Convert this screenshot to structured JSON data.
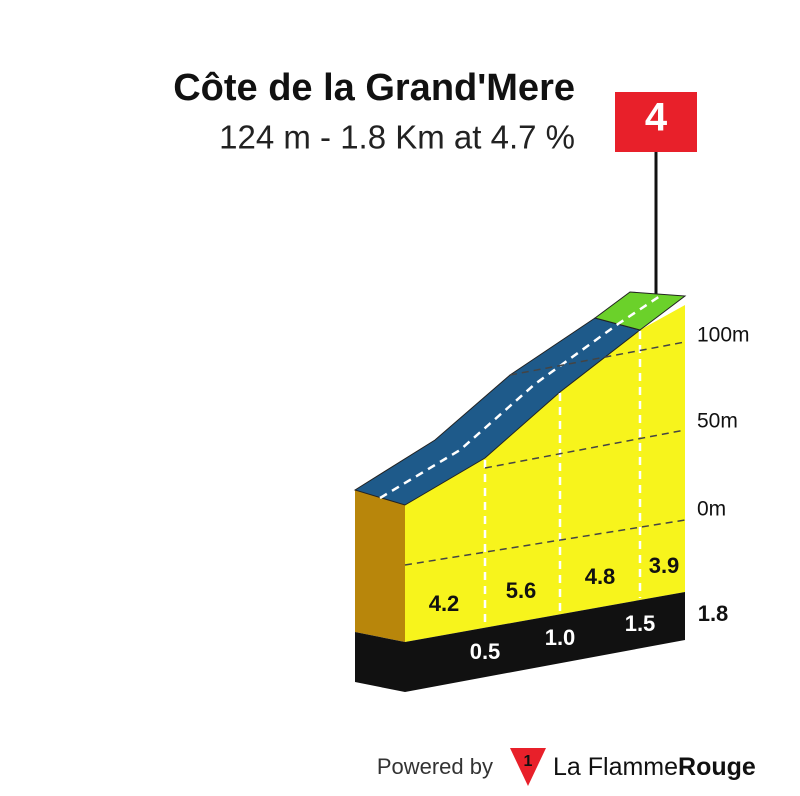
{
  "header": {
    "title": "Côte de la Grand'Mere",
    "subtitle": "124 m - 1.8 Km at 4.7 %"
  },
  "profile": {
    "category": "4",
    "elevation_labels": [
      "100m",
      "50m",
      "0m"
    ],
    "gradients": [
      "4.2",
      "5.6",
      "4.8",
      "3.9"
    ],
    "distances": [
      "0.5",
      "1.0",
      "1.5",
      "1.8"
    ]
  },
  "footer": {
    "powered_by": "Powered by",
    "brand_light": "La Flamme",
    "brand_bold": "Rouge",
    "logo_digit": "1"
  }
}
